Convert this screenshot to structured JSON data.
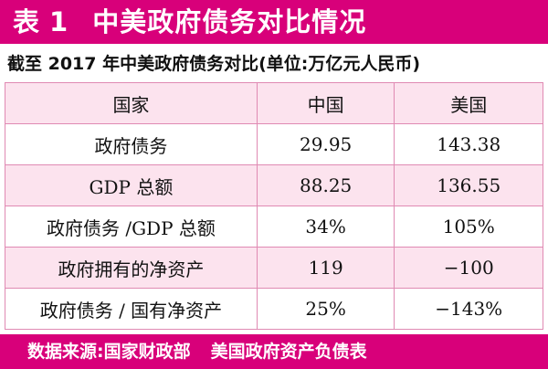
{
  "title": {
    "prefix": "表",
    "number": "1",
    "text": "中美政府债务对比情况"
  },
  "subtitle": "截至 2017 年中美政府债务对比(单位:万亿元人民币)",
  "table": {
    "header": [
      "国家",
      "中国",
      "美国"
    ],
    "rows": [
      [
        "政府债务",
        "29.95",
        "143.38"
      ],
      [
        "GDP 总额",
        "88.25",
        "136.55"
      ],
      [
        "政府债务 /GDP 总额",
        "34%",
        "105%"
      ],
      [
        "政府拥有的净资产",
        "119",
        "−100"
      ],
      [
        "政府债务 / 国有净资产",
        "25%",
        "−143%"
      ]
    ]
  },
  "footer": {
    "source_label": "数据来源:国家财政部",
    "source_second": "美国政府资产负债表"
  },
  "colors": {
    "accent": "#d8007a",
    "row_tint": "#fce3ee",
    "border": "#e08ab3"
  }
}
